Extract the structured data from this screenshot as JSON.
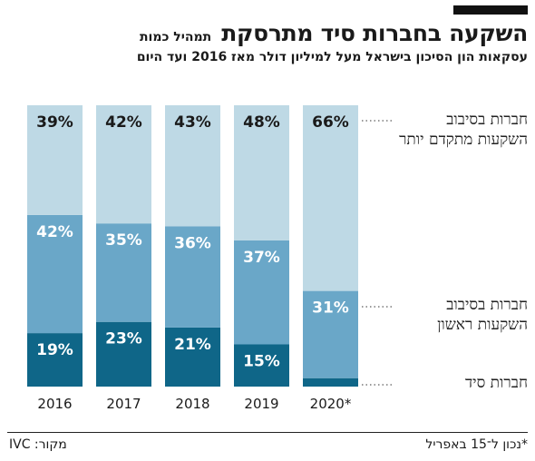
{
  "title": {
    "main": "השקעה בחברות סיד מתרסקת",
    "suffix": "תמהיל כמות"
  },
  "subtitle": "עסקאות הון הסיכון בישראל מעל למיליון דולר מאז 2016 ועד היום",
  "legend": {
    "late_stage": "חברות בסיבוב השקעות מתקדם יותר",
    "first_round": "חברות בסיבוב השקעות ראשון",
    "seed": "חברות סיד"
  },
  "note": "*נכון ל־15 באפריל",
  "source": "מקור: IVC",
  "colors": {
    "late_stage": "#bed9e5",
    "first_round": "#6aa7c8",
    "seed": "#0f6688"
  },
  "chart_data": {
    "type": "bar",
    "stacked": true,
    "percent_stacked": true,
    "categories": [
      "2016",
      "2017",
      "2018",
      "2019",
      "2020*"
    ],
    "series": [
      {
        "name": "חברות סיד",
        "key": "seed",
        "values": [
          19,
          23,
          21,
          15,
          3
        ]
      },
      {
        "name": "חברות בסיבוב השקעות ראשון",
        "key": "first_round",
        "values": [
          42,
          35,
          36,
          37,
          31
        ]
      },
      {
        "name": "חברות בסיבוב השקעות מתקדם יותר",
        "key": "late_stage",
        "values": [
          39,
          42,
          43,
          48,
          66
        ]
      }
    ],
    "ylim": [
      0,
      100
    ],
    "value_format": "{v}%",
    "legend_position": "right",
    "grid": false
  }
}
